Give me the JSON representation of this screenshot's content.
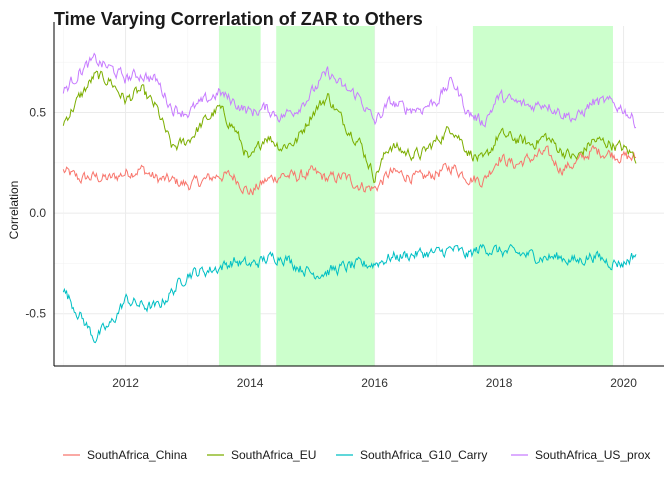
{
  "chart_data": {
    "type": "line",
    "title": "Time Varying Correrlation of ZAR to Others",
    "xlabel": "",
    "ylabel": "Correlation",
    "xlim": [
      2010.85,
      2020.65
    ],
    "ylim": [
      -0.76,
      0.93
    ],
    "x_ticks": [
      2012,
      2014,
      2016,
      2018,
      2020
    ],
    "x_tick_labels": [
      "2012",
      "2014",
      "2016",
      "2018",
      "2020"
    ],
    "y_ticks": [
      -0.5,
      0.0,
      0.5
    ],
    "y_tick_labels": [
      "-0.5",
      "0.0",
      "0.5"
    ],
    "grid": true,
    "legend_position": "bottom",
    "shaded_regions": [
      {
        "start": 2013.5,
        "end": 2014.17
      },
      {
        "start": 2014.42,
        "end": 2016.0
      },
      {
        "start": 2017.58,
        "end": 2019.83
      }
    ],
    "shade_color": "#ccffcc",
    "series": [
      {
        "name": "SouthAfrica_China",
        "color": "#F8766D",
        "x": [
          2011.0,
          2011.25,
          2011.5,
          2011.75,
          2012.0,
          2012.25,
          2012.5,
          2012.75,
          2013.0,
          2013.25,
          2013.5,
          2013.75,
          2014.0,
          2014.25,
          2014.5,
          2014.75,
          2015.0,
          2015.25,
          2015.5,
          2015.75,
          2016.0,
          2016.25,
          2016.5,
          2016.75,
          2017.0,
          2017.25,
          2017.5,
          2017.75,
          2018.0,
          2018.25,
          2018.5,
          2018.75,
          2019.0,
          2019.25,
          2019.5,
          2019.75,
          2020.0,
          2020.2
        ],
        "values": [
          0.21,
          0.17,
          0.18,
          0.17,
          0.2,
          0.22,
          0.17,
          0.16,
          0.14,
          0.16,
          0.19,
          0.18,
          0.1,
          0.16,
          0.19,
          0.18,
          0.2,
          0.17,
          0.18,
          0.14,
          0.12,
          0.2,
          0.19,
          0.17,
          0.2,
          0.23,
          0.18,
          0.16,
          0.28,
          0.24,
          0.27,
          0.3,
          0.22,
          0.25,
          0.31,
          0.3,
          0.28,
          0.27
        ]
      },
      {
        "name": "SouthAfrica_EU",
        "color": "#7CAE00",
        "x": [
          2011.0,
          2011.25,
          2011.5,
          2011.75,
          2012.0,
          2012.25,
          2012.5,
          2012.75,
          2013.0,
          2013.25,
          2013.5,
          2013.75,
          2014.0,
          2014.25,
          2014.5,
          2014.75,
          2015.0,
          2015.25,
          2015.5,
          2015.75,
          2016.0,
          2016.25,
          2016.5,
          2016.75,
          2017.0,
          2017.25,
          2017.5,
          2017.75,
          2018.0,
          2018.25,
          2018.5,
          2018.75,
          2019.0,
          2019.25,
          2019.5,
          2019.75,
          2020.0,
          2020.2
        ],
        "values": [
          0.45,
          0.57,
          0.68,
          0.66,
          0.56,
          0.61,
          0.52,
          0.32,
          0.36,
          0.45,
          0.52,
          0.42,
          0.25,
          0.39,
          0.33,
          0.36,
          0.5,
          0.58,
          0.45,
          0.36,
          0.18,
          0.34,
          0.3,
          0.29,
          0.36,
          0.43,
          0.31,
          0.25,
          0.39,
          0.37,
          0.34,
          0.38,
          0.31,
          0.27,
          0.36,
          0.35,
          0.32,
          0.28
        ]
      },
      {
        "name": "SouthAfrica_G10_Carry",
        "color": "#00BFC4",
        "x": [
          2011.0,
          2011.25,
          2011.5,
          2011.75,
          2012.0,
          2012.25,
          2012.5,
          2012.75,
          2013.0,
          2013.25,
          2013.5,
          2013.75,
          2014.0,
          2014.25,
          2014.5,
          2014.75,
          2015.0,
          2015.25,
          2015.5,
          2015.75,
          2016.0,
          2016.25,
          2016.5,
          2016.75,
          2017.0,
          2017.25,
          2017.5,
          2017.75,
          2018.0,
          2018.25,
          2018.5,
          2018.75,
          2019.0,
          2019.25,
          2019.5,
          2019.75,
          2020.0,
          2020.2
        ],
        "values": [
          -0.38,
          -0.5,
          -0.62,
          -0.56,
          -0.43,
          -0.46,
          -0.47,
          -0.39,
          -0.3,
          -0.29,
          -0.27,
          -0.24,
          -0.26,
          -0.23,
          -0.21,
          -0.26,
          -0.3,
          -0.29,
          -0.27,
          -0.26,
          -0.25,
          -0.22,
          -0.21,
          -0.2,
          -0.2,
          -0.18,
          -0.21,
          -0.17,
          -0.19,
          -0.2,
          -0.21,
          -0.22,
          -0.22,
          -0.24,
          -0.21,
          -0.24,
          -0.25,
          -0.2
        ]
      },
      {
        "name": "SouthAfrica_US_prox",
        "color": "#C77CFF",
        "x": [
          2011.0,
          2011.25,
          2011.5,
          2011.75,
          2012.0,
          2012.25,
          2012.5,
          2012.75,
          2013.0,
          2013.25,
          2013.5,
          2013.75,
          2014.0,
          2014.25,
          2014.5,
          2014.75,
          2015.0,
          2015.25,
          2015.5,
          2015.75,
          2016.0,
          2016.25,
          2016.5,
          2016.75,
          2017.0,
          2017.25,
          2017.5,
          2017.75,
          2018.0,
          2018.25,
          2018.5,
          2018.75,
          2019.0,
          2019.25,
          2019.5,
          2019.75,
          2020.0,
          2020.2
        ],
        "values": [
          0.6,
          0.7,
          0.76,
          0.72,
          0.67,
          0.69,
          0.66,
          0.52,
          0.5,
          0.55,
          0.6,
          0.55,
          0.5,
          0.52,
          0.48,
          0.52,
          0.6,
          0.7,
          0.62,
          0.58,
          0.45,
          0.55,
          0.52,
          0.52,
          0.56,
          0.66,
          0.5,
          0.45,
          0.58,
          0.55,
          0.53,
          0.55,
          0.5,
          0.47,
          0.55,
          0.55,
          0.52,
          0.45
        ]
      }
    ]
  }
}
